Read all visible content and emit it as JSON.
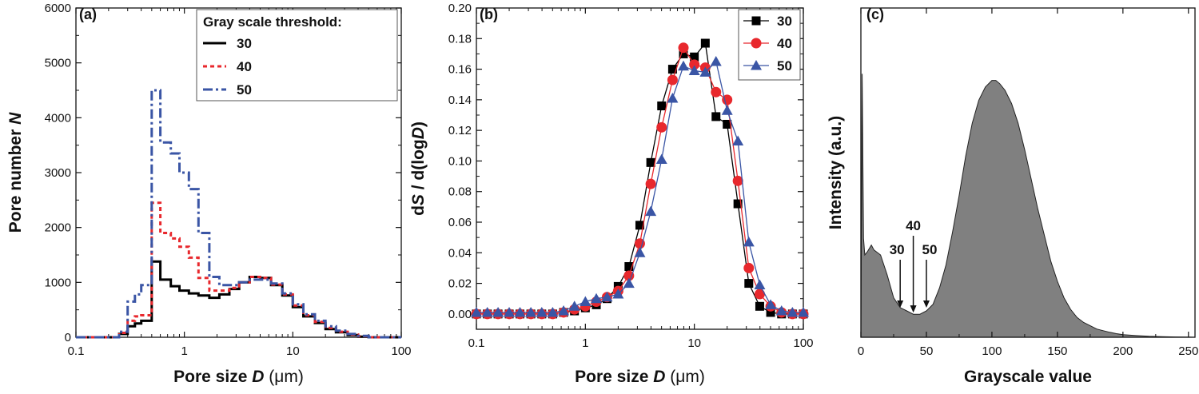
{
  "chart_data": [
    {
      "type": "line",
      "panel_label": "(a)",
      "xlabel_main": "Pore size ",
      "xlabel_var": "D",
      "xlabel_unit": "(μm)",
      "ylabel_main": "Pore number ",
      "ylabel_var": "N",
      "x_scale": "log",
      "xlim": [
        0.1,
        100
      ],
      "ylim": [
        0,
        6000
      ],
      "x_ticks": [
        {
          "value": 0.1,
          "label": "0.1"
        },
        {
          "value": 1,
          "label": "1"
        },
        {
          "value": 10,
          "label": "10"
        },
        {
          "value": 100,
          "label": "100"
        }
      ],
      "y_ticks": [
        {
          "value": 0,
          "label": "0"
        },
        {
          "value": 1000,
          "label": "1000"
        },
        {
          "value": 2000,
          "label": "2000"
        },
        {
          "value": 3000,
          "label": "3000"
        },
        {
          "value": 4000,
          "label": "4000"
        },
        {
          "value": 5000,
          "label": "5000"
        },
        {
          "value": 6000,
          "label": "6000"
        }
      ],
      "legend_title": "Gray scale threshold:",
      "legend_position": "top-right",
      "series": [
        {
          "name": "30",
          "color": "#000000",
          "style": "solid",
          "x": [
            0.1,
            0.2,
            0.25,
            0.3,
            0.35,
            0.4,
            0.5,
            0.6,
            0.75,
            0.9,
            1.1,
            1.35,
            1.7,
            2.1,
            2.6,
            3.2,
            4,
            5,
            6.3,
            8,
            10,
            12.5,
            16,
            20,
            25,
            32,
            40,
            50,
            100
          ],
          "y": [
            0,
            0,
            60,
            200,
            250,
            300,
            1380,
            1050,
            930,
            850,
            800,
            760,
            720,
            780,
            880,
            1000,
            1100,
            1080,
            950,
            760,
            550,
            380,
            260,
            150,
            90,
            40,
            10,
            0,
            0
          ]
        },
        {
          "name": "40",
          "color": "#e8282d",
          "style": "dashed",
          "x": [
            0.1,
            0.2,
            0.25,
            0.3,
            0.35,
            0.4,
            0.5,
            0.6,
            0.75,
            0.9,
            1.1,
            1.35,
            1.7,
            2.1,
            2.6,
            3.2,
            4,
            5,
            6.3,
            8,
            10,
            12.5,
            16,
            20,
            25,
            32,
            40,
            50,
            100
          ],
          "y": [
            0,
            0,
            80,
            300,
            380,
            400,
            2450,
            1900,
            1800,
            1650,
            1450,
            1080,
            850,
            850,
            900,
            1000,
            1100,
            1080,
            960,
            780,
            580,
            400,
            280,
            170,
            100,
            50,
            20,
            0,
            0
          ]
        },
        {
          "name": "50",
          "color": "#3a55a5",
          "style": "dashdot",
          "x": [
            0.1,
            0.2,
            0.25,
            0.3,
            0.35,
            0.4,
            0.5,
            0.6,
            0.75,
            0.9,
            1.1,
            1.35,
            1.7,
            2.1,
            2.6,
            3.2,
            4,
            5,
            6.3,
            8,
            10,
            12.5,
            16,
            20,
            25,
            32,
            40,
            50,
            100
          ],
          "y": [
            0,
            0,
            100,
            650,
            780,
            950,
            4500,
            3550,
            3350,
            3000,
            2700,
            1900,
            1100,
            950,
            950,
            1000,
            1050,
            1050,
            980,
            800,
            600,
            420,
            300,
            200,
            120,
            60,
            25,
            0,
            0
          ]
        }
      ]
    },
    {
      "type": "line",
      "panel_label": "(b)",
      "xlabel_main": "Pore size ",
      "xlabel_var": "D",
      "xlabel_unit": "(μm)",
      "ylabel_parts": [
        "d",
        "S",
        " / d(log",
        "D",
        ")"
      ],
      "x_scale": "log",
      "xlim": [
        0.1,
        100
      ],
      "ylim": [
        -0.01,
        0.2
      ],
      "x_ticks": [
        {
          "value": 0.1,
          "label": "0.1"
        },
        {
          "value": 1,
          "label": "1"
        },
        {
          "value": 10,
          "label": "10"
        },
        {
          "value": 100,
          "label": "100"
        }
      ],
      "y_ticks": [
        {
          "value": 0,
          "label": "0.00"
        },
        {
          "value": 0.02,
          "label": "0.02"
        },
        {
          "value": 0.04,
          "label": "0.04"
        },
        {
          "value": 0.06,
          "label": "0.06"
        },
        {
          "value": 0.08,
          "label": "0.08"
        },
        {
          "value": 0.1,
          "label": "0.10"
        },
        {
          "value": 0.12,
          "label": "0.12"
        },
        {
          "value": 0.14,
          "label": "0.14"
        },
        {
          "value": 0.16,
          "label": "0.16"
        },
        {
          "value": 0.18,
          "label": "0.18"
        },
        {
          "value": 0.2,
          "label": "0.20"
        }
      ],
      "legend_position": "top-right",
      "series": [
        {
          "name": "30",
          "color": "#000000",
          "marker": "square",
          "x": [
            0.1,
            0.126,
            0.158,
            0.2,
            0.251,
            0.316,
            0.398,
            0.501,
            0.631,
            0.794,
            1.0,
            1.26,
            1.58,
            2.0,
            2.51,
            3.16,
            3.98,
            5.01,
            6.31,
            7.94,
            10.0,
            12.6,
            15.8,
            20.0,
            25.1,
            31.6,
            39.8,
            50.1,
            63.1,
            79.4,
            100
          ],
          "y": [
            0,
            0,
            0,
            0,
            0,
            0,
            0,
            0,
            0.001,
            0.002,
            0.004,
            0.006,
            0.01,
            0.018,
            0.031,
            0.058,
            0.099,
            0.136,
            0.16,
            0.17,
            0.168,
            0.177,
            0.129,
            0.124,
            0.072,
            0.02,
            0.005,
            0.001,
            0,
            0,
            0
          ]
        },
        {
          "name": "40",
          "color": "#e8282d",
          "marker": "circle",
          "x": [
            0.1,
            0.126,
            0.158,
            0.2,
            0.251,
            0.316,
            0.398,
            0.501,
            0.631,
            0.794,
            1.0,
            1.26,
            1.58,
            2.0,
            2.51,
            3.16,
            3.98,
            5.01,
            6.31,
            7.94,
            10.0,
            12.6,
            15.8,
            20.0,
            25.1,
            31.6,
            39.8,
            50.1,
            63.1,
            79.4,
            100
          ],
          "y": [
            0,
            0,
            0,
            0,
            0,
            0,
            0,
            0,
            0.001,
            0.003,
            0.005,
            0.008,
            0.011,
            0.015,
            0.025,
            0.046,
            0.085,
            0.122,
            0.153,
            0.174,
            0.163,
            0.161,
            0.145,
            0.14,
            0.087,
            0.03,
            0.013,
            0.005,
            0.001,
            0,
            0
          ]
        },
        {
          "name": "50",
          "color": "#3a55a5",
          "marker": "triangle",
          "x": [
            0.1,
            0.126,
            0.158,
            0.2,
            0.251,
            0.316,
            0.398,
            0.501,
            0.631,
            0.794,
            1.0,
            1.26,
            1.58,
            2.0,
            2.51,
            3.16,
            3.98,
            5.01,
            6.31,
            7.94,
            10.0,
            12.6,
            15.8,
            20.0,
            25.1,
            31.6,
            39.8,
            50.1,
            63.1,
            79.4,
            100
          ],
          "y": [
            0.001,
            0.001,
            0.001,
            0.001,
            0.001,
            0.001,
            0.001,
            0.001,
            0.002,
            0.005,
            0.008,
            0.01,
            0.011,
            0.013,
            0.02,
            0.04,
            0.067,
            0.101,
            0.141,
            0.162,
            0.159,
            0.158,
            0.165,
            0.133,
            0.113,
            0.047,
            0.019,
            0.006,
            0.002,
            0.001,
            0.001
          ]
        }
      ]
    },
    {
      "type": "area",
      "panel_label": "(c)",
      "xlabel": "Grayscale value",
      "ylabel": "Intensity (a.u.)",
      "xlim": [
        0,
        255
      ],
      "ylim": [
        0,
        1
      ],
      "x_ticks": [
        {
          "value": 0,
          "label": "0"
        },
        {
          "value": 50,
          "label": "50"
        },
        {
          "value": 100,
          "label": "100"
        },
        {
          "value": 150,
          "label": "150"
        },
        {
          "value": 200,
          "label": "200"
        },
        {
          "value": 250,
          "label": "250"
        }
      ],
      "y_ticks_shown": false,
      "fill_color": "#808080",
      "series": [
        {
          "name": "",
          "x": [
            0,
            1,
            2,
            3,
            5,
            8,
            10,
            15,
            20,
            25,
            30,
            35,
            40,
            45,
            50,
            55,
            60,
            65,
            70,
            75,
            80,
            85,
            90,
            95,
            100,
            103,
            106,
            110,
            115,
            120,
            125,
            130,
            135,
            140,
            145,
            150,
            155,
            160,
            165,
            170,
            175,
            180,
            185,
            190,
            195,
            200,
            210,
            220,
            230,
            240,
            250,
            255
          ],
          "y": [
            0,
            0.8,
            0.3,
            0.25,
            0.26,
            0.28,
            0.265,
            0.25,
            0.19,
            0.12,
            0.09,
            0.08,
            0.07,
            0.07,
            0.08,
            0.1,
            0.15,
            0.22,
            0.32,
            0.43,
            0.55,
            0.65,
            0.72,
            0.76,
            0.78,
            0.78,
            0.77,
            0.75,
            0.71,
            0.65,
            0.57,
            0.48,
            0.39,
            0.31,
            0.23,
            0.17,
            0.12,
            0.085,
            0.06,
            0.045,
            0.035,
            0.025,
            0.02,
            0.015,
            0.011,
            0.008,
            0.005,
            0.003,
            0.002,
            0.001,
            0.0005,
            0
          ]
        }
      ],
      "annotations": [
        {
          "label": "30",
          "x": 30,
          "y_tip": 0.085
        },
        {
          "label": "40",
          "x": 40,
          "y_tip": 0.07
        },
        {
          "label": "50",
          "x": 50,
          "y_tip": 0.085
        }
      ]
    }
  ]
}
